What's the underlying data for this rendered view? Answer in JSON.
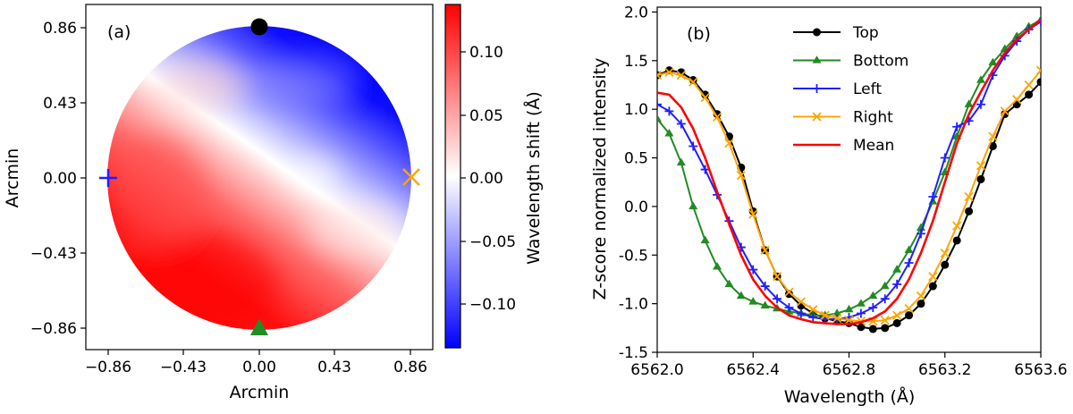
{
  "panel_a": {
    "label": "(a)",
    "xlabel": "Arcmin",
    "ylabel": "Arcmin",
    "xticks": [
      "−0.86",
      "−0.43",
      "0.00",
      "0.43",
      "0.86"
    ],
    "yticks": [
      "0.86",
      "0.43",
      "0.00",
      "−0.43",
      "−0.86"
    ],
    "colorbar_label": "Wavelength shift (Å)",
    "colorbar_ticks": [
      "0.10",
      "0.05",
      "0.00",
      "−0.05",
      "−0.10"
    ]
  },
  "panel_b": {
    "label": "(b)",
    "xlabel": "Wavelength (Å)",
    "ylabel": "Z-score normalized intensity",
    "xticks": [
      "6562.0",
      "6562.4",
      "6562.8",
      "6563.2",
      "6563.6"
    ],
    "yticks": [
      "2.0",
      "1.5",
      "1.0",
      "0.5",
      "0.0",
      "-0.5",
      "-1.0",
      "-1.5"
    ],
    "legend": [
      "Top",
      "Bottom",
      "Left",
      "Right",
      "Mean"
    ]
  },
  "chart_data": [
    {
      "type": "heatmap",
      "title": "",
      "xlabel": "Arcmin",
      "ylabel": "Arcmin",
      "xlim": [
        -0.95,
        0.95
      ],
      "ylim": [
        -0.95,
        0.95
      ],
      "colorbar": {
        "label": "Wavelength shift (Å)",
        "range": [
          -0.135,
          0.135
        ],
        "cmap": "bwr"
      },
      "field": "circular disk of radius 0.86 arcmin; blue-shifted upper-right, red-shifted lower-left, zero-crossing band running diagonally",
      "markers": [
        {
          "name": "Top",
          "x": 0.0,
          "y": 0.86,
          "shape": "circle",
          "color": "#000000"
        },
        {
          "name": "Bottom",
          "x": 0.0,
          "y": -0.86,
          "shape": "triangle",
          "color": "#228B22"
        },
        {
          "name": "Left",
          "x": -0.86,
          "y": 0.0,
          "shape": "plus",
          "color": "#1f1fff"
        },
        {
          "name": "Right",
          "x": 0.86,
          "y": 0.0,
          "shape": "x",
          "color": "#FFA500"
        }
      ]
    },
    {
      "type": "line",
      "title": "",
      "xlabel": "Wavelength (Å)",
      "ylabel": "Z-score normalized intensity",
      "xlim": [
        6562.0,
        6563.6
      ],
      "ylim": [
        -1.5,
        2.05
      ],
      "legend_position": "top",
      "series": [
        {
          "name": "Top",
          "color": "#000000",
          "marker": "circle",
          "x": [
            6562.0,
            6562.05,
            6562.1,
            6562.15,
            6562.2,
            6562.25,
            6562.3,
            6562.35,
            6562.4,
            6562.45,
            6562.5,
            6562.55,
            6562.6,
            6562.65,
            6562.7,
            6562.75,
            6562.8,
            6562.85,
            6562.9,
            6562.95,
            6563.0,
            6563.05,
            6563.1,
            6563.15,
            6563.2,
            6563.25,
            6563.3,
            6563.35,
            6563.4,
            6563.45,
            6563.5,
            6563.55,
            6563.6
          ],
          "y": [
            1.35,
            1.4,
            1.38,
            1.3,
            1.15,
            0.95,
            0.72,
            0.4,
            -0.05,
            -0.45,
            -0.72,
            -0.9,
            -1.02,
            -1.1,
            -1.15,
            -1.18,
            -1.2,
            -1.24,
            -1.26,
            -1.25,
            -1.2,
            -1.12,
            -1.0,
            -0.82,
            -0.6,
            -0.35,
            -0.05,
            0.28,
            0.62,
            0.95,
            1.05,
            1.15,
            1.28
          ]
        },
        {
          "name": "Bottom",
          "color": "#228B22",
          "marker": "triangle",
          "x": [
            6562.0,
            6562.05,
            6562.1,
            6562.15,
            6562.2,
            6562.25,
            6562.3,
            6562.35,
            6562.4,
            6562.45,
            6562.5,
            6562.55,
            6562.6,
            6562.65,
            6562.7,
            6562.75,
            6562.8,
            6562.85,
            6562.9,
            6562.95,
            6563.0,
            6563.05,
            6563.1,
            6563.15,
            6563.2,
            6563.25,
            6563.3,
            6563.35,
            6563.4,
            6563.45,
            6563.5,
            6563.55,
            6563.6
          ],
          "y": [
            0.9,
            0.75,
            0.45,
            0.0,
            -0.35,
            -0.62,
            -0.8,
            -0.92,
            -0.98,
            -1.02,
            -1.05,
            -1.08,
            -1.1,
            -1.12,
            -1.12,
            -1.1,
            -1.06,
            -1.0,
            -0.92,
            -0.82,
            -0.65,
            -0.45,
            -0.22,
            0.05,
            0.35,
            0.72,
            1.05,
            1.3,
            1.48,
            1.62,
            1.75,
            1.85,
            1.92
          ]
        },
        {
          "name": "Left",
          "color": "#1f1fff",
          "marker": "plus",
          "x": [
            6562.0,
            6562.05,
            6562.1,
            6562.15,
            6562.2,
            6562.25,
            6562.3,
            6562.35,
            6562.4,
            6562.45,
            6562.5,
            6562.55,
            6562.6,
            6562.65,
            6562.7,
            6562.75,
            6562.8,
            6562.85,
            6562.9,
            6562.95,
            6563.0,
            6563.05,
            6563.1,
            6563.15,
            6563.2,
            6563.25,
            6563.3,
            6563.35,
            6563.4,
            6563.45,
            6563.5,
            6563.55,
            6563.6
          ],
          "y": [
            1.05,
            0.98,
            0.85,
            0.62,
            0.38,
            0.12,
            -0.15,
            -0.42,
            -0.65,
            -0.82,
            -0.95,
            -1.04,
            -1.1,
            -1.14,
            -1.16,
            -1.16,
            -1.14,
            -1.1,
            -1.04,
            -0.95,
            -0.8,
            -0.58,
            -0.28,
            0.1,
            0.5,
            0.82,
            0.88,
            1.05,
            1.35,
            1.55,
            1.7,
            1.82,
            1.9
          ]
        },
        {
          "name": "Right",
          "color": "#FFA500",
          "marker": "x",
          "x": [
            6562.0,
            6562.05,
            6562.1,
            6562.15,
            6562.2,
            6562.25,
            6562.3,
            6562.35,
            6562.4,
            6562.45,
            6562.5,
            6562.55,
            6562.6,
            6562.65,
            6562.7,
            6562.75,
            6562.8,
            6562.85,
            6562.9,
            6562.95,
            6563.0,
            6563.05,
            6563.1,
            6563.15,
            6563.2,
            6563.25,
            6563.3,
            6563.35,
            6563.4,
            6563.45,
            6563.5,
            6563.55,
            6563.6
          ],
          "y": [
            1.35,
            1.38,
            1.35,
            1.28,
            1.12,
            0.92,
            0.65,
            0.32,
            -0.08,
            -0.45,
            -0.72,
            -0.88,
            -0.98,
            -1.06,
            -1.12,
            -1.15,
            -1.17,
            -1.18,
            -1.18,
            -1.17,
            -1.12,
            -1.05,
            -0.92,
            -0.72,
            -0.48,
            -0.2,
            0.1,
            0.42,
            0.72,
            0.98,
            1.1,
            1.25,
            1.4
          ]
        },
        {
          "name": "Mean",
          "color": "#ff0000",
          "marker": "none",
          "x": [
            6562.0,
            6562.05,
            6562.1,
            6562.15,
            6562.2,
            6562.25,
            6562.3,
            6562.35,
            6562.4,
            6562.45,
            6562.5,
            6562.55,
            6562.6,
            6562.65,
            6562.7,
            6562.75,
            6562.8,
            6562.85,
            6562.9,
            6562.95,
            6563.0,
            6563.05,
            6563.1,
            6563.15,
            6563.2,
            6563.25,
            6563.3,
            6563.35,
            6563.4,
            6563.45,
            6563.5,
            6563.55,
            6563.6
          ],
          "y": [
            1.17,
            1.15,
            1.02,
            0.8,
            0.5,
            0.15,
            -0.18,
            -0.5,
            -0.75,
            -0.92,
            -1.04,
            -1.12,
            -1.16,
            -1.19,
            -1.2,
            -1.21,
            -1.21,
            -1.19,
            -1.15,
            -1.08,
            -0.95,
            -0.75,
            -0.48,
            -0.15,
            0.25,
            0.65,
            0.95,
            1.18,
            1.4,
            1.58,
            1.72,
            1.82,
            1.92
          ]
        }
      ]
    }
  ]
}
